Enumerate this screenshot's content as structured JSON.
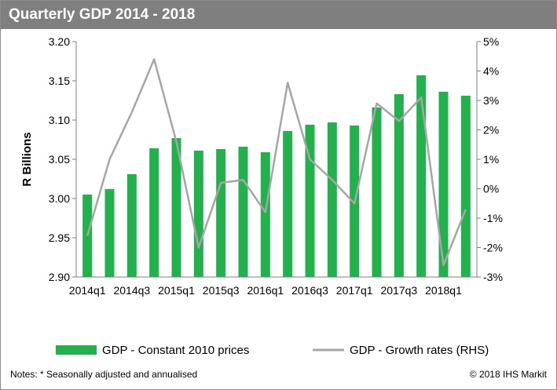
{
  "header": {
    "title": "Quarterly GDP 2014 - 2018"
  },
  "footer": {
    "note": "Notes: * Seasonally adjusted and annualised",
    "copyright": "© 2018 IHS Markit"
  },
  "colors": {
    "bar": "#22b14c",
    "line": "#a6a6a6",
    "title_bg": "#7f7f7f"
  },
  "chart_data": {
    "type": "bar",
    "ylabel": "R Billions",
    "left_axis": {
      "min": 2.9,
      "max": 3.2,
      "ticks": [
        "2.90",
        "2.95",
        "3.00",
        "3.05",
        "3.10",
        "3.15",
        "3.20"
      ]
    },
    "right_axis": {
      "min": -3,
      "max": 5,
      "ticks": [
        "-3%",
        "-2%",
        "-1%",
        "0%",
        "1%",
        "2%",
        "3%",
        "4%",
        "5%"
      ]
    },
    "categories": [
      "2014q1",
      "2014q2",
      "2014q3",
      "2014q4",
      "2015q1",
      "2015q2",
      "2015q3",
      "2015q4",
      "2016q1",
      "2016q2",
      "2016q3",
      "2016q4",
      "2017q1",
      "2017q2",
      "2017q3",
      "2017q4",
      "2018q1",
      "2018q2"
    ],
    "x_tick_labels": [
      "2014q1",
      "",
      "2014q3",
      "",
      "2015q1",
      "",
      "2015q3",
      "",
      "2016q1",
      "",
      "2016q3",
      "",
      "2017q1",
      "",
      "2017q3",
      "",
      "2018q1",
      ""
    ],
    "series": [
      {
        "name": "GDP - Constant 2010 prices",
        "type": "bar",
        "axis": "left",
        "values": [
          3.005,
          3.012,
          3.031,
          3.064,
          3.077,
          3.061,
          3.063,
          3.066,
          3.059,
          3.086,
          3.094,
          3.097,
          3.093,
          3.116,
          3.133,
          3.157,
          3.136,
          3.131
        ]
      },
      {
        "name": "GDP - Growth rates (RHS)",
        "type": "line",
        "axis": "right",
        "values": [
          -1.6,
          1.0,
          2.6,
          4.4,
          1.6,
          -2.0,
          0.2,
          0.3,
          -0.8,
          3.6,
          1.0,
          0.3,
          -0.5,
          2.9,
          2.3,
          3.1,
          -2.6,
          -0.7
        ]
      }
    ],
    "legend_position": "bottom",
    "grid": false
  }
}
